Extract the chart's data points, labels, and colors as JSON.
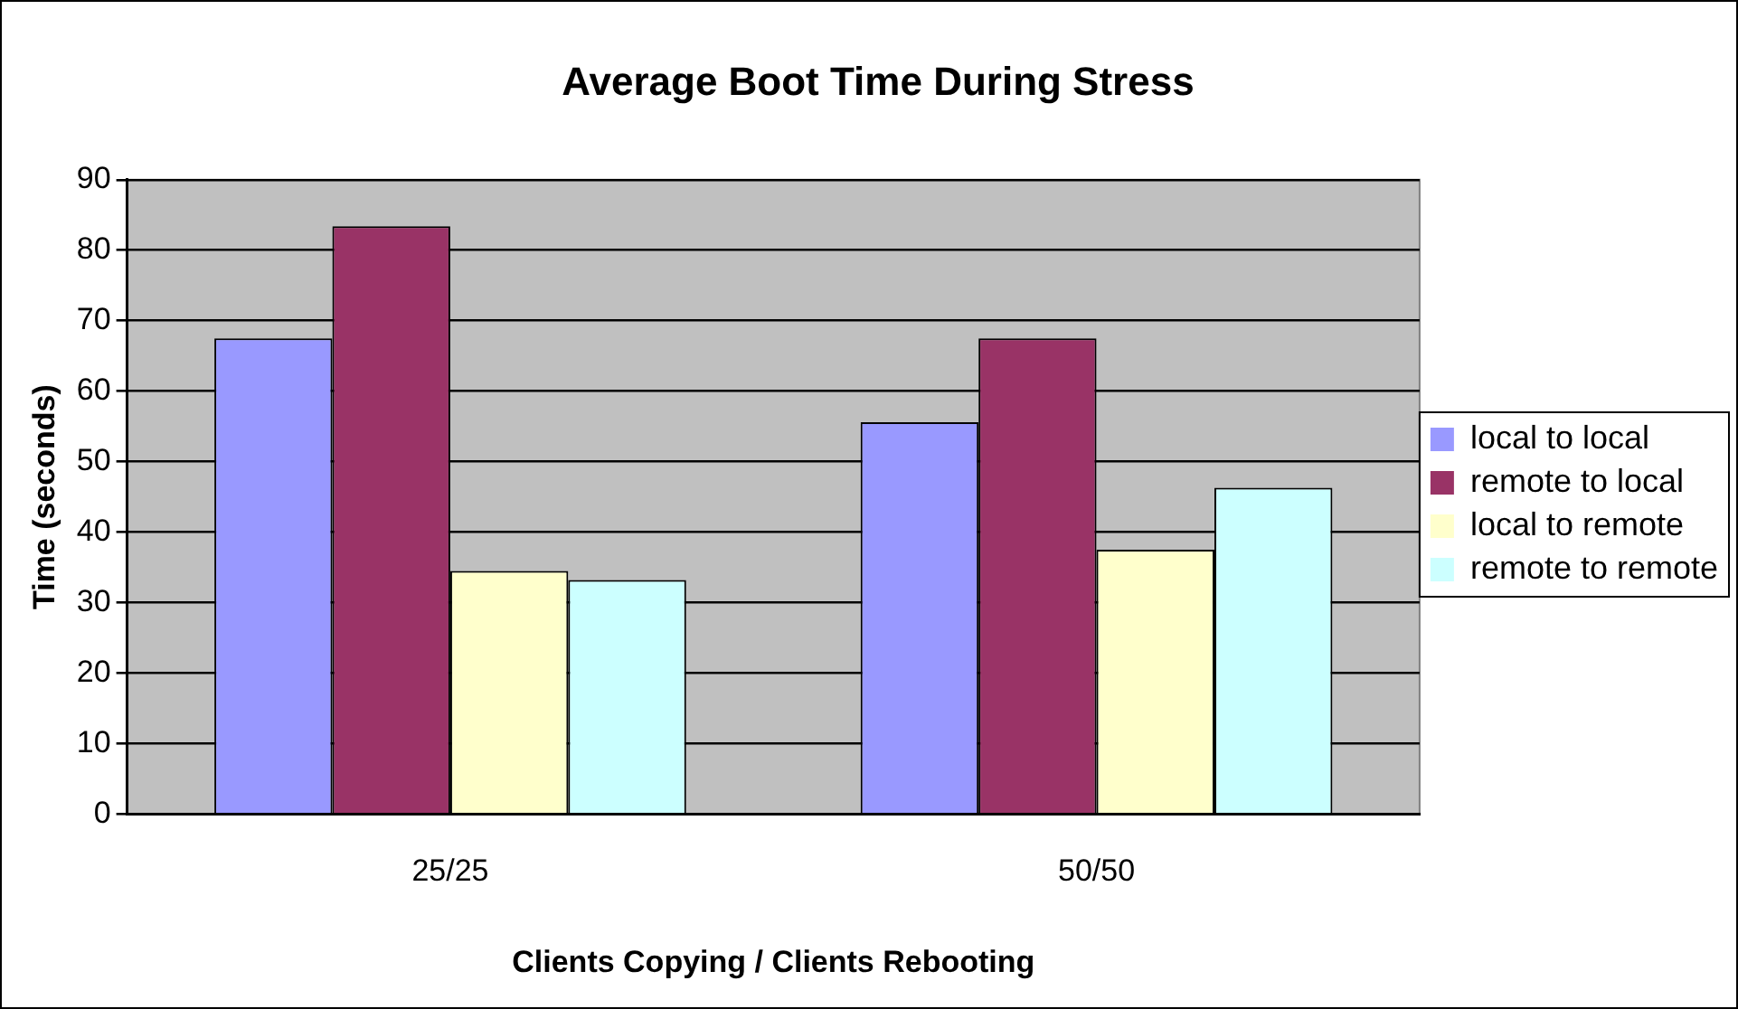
{
  "chart_data": {
    "type": "bar",
    "title": "Average Boot Time During Stress",
    "xlabel": "Clients Copying / Clients Rebooting",
    "ylabel": "Time (seconds)",
    "categories": [
      "25/25",
      "50/50"
    ],
    "series": [
      {
        "name": "local to local",
        "color": "#9999ff",
        "values": [
          67.5,
          55.6
        ]
      },
      {
        "name": "remote to local",
        "color": "#993366",
        "values": [
          83.4,
          67.5
        ]
      },
      {
        "name": "local to remote",
        "color": "#ffffcc",
        "values": [
          34.5,
          37.5
        ]
      },
      {
        "name": "remote to remote",
        "color": "#ccffff",
        "values": [
          33.2,
          46.3
        ]
      }
    ],
    "ylim": [
      0,
      90
    ],
    "yticks": [
      0,
      10,
      20,
      30,
      40,
      50,
      60,
      70,
      80,
      90
    ],
    "grid": "y",
    "legend": "right"
  }
}
